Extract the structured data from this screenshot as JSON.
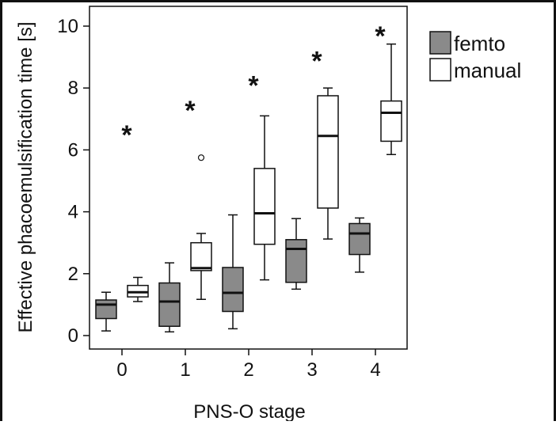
{
  "chart_data": {
    "type": "boxplot",
    "xlabel": "PNS-O stage",
    "ylabel": "Effective phacoemulsification time [s]",
    "categories": [
      "0",
      "1",
      "2",
      "3",
      "4"
    ],
    "ylim": [
      -0.3,
      10.5
    ],
    "yticks": [
      "0",
      "2",
      "4",
      "6",
      "8",
      "10"
    ],
    "legend": {
      "placement": "right",
      "entries": [
        "femto",
        "manual"
      ]
    },
    "series": [
      {
        "name": "femto",
        "color": "#8a8a8a",
        "boxes": [
          {
            "min": 0.15,
            "q1": 0.55,
            "median": 1.0,
            "q3": 1.15,
            "max": 1.4,
            "outliers": []
          },
          {
            "min": 0.12,
            "q1": 0.3,
            "median": 1.1,
            "q3": 1.7,
            "max": 2.35,
            "outliers": []
          },
          {
            "min": 0.22,
            "q1": 0.78,
            "median": 1.38,
            "q3": 2.2,
            "max": 3.9,
            "outliers": []
          },
          {
            "min": 1.5,
            "q1": 1.72,
            "median": 2.8,
            "q3": 3.1,
            "max": 3.78,
            "outliers": []
          },
          {
            "min": 2.05,
            "q1": 2.62,
            "median": 3.3,
            "q3": 3.62,
            "max": 3.8,
            "outliers": []
          }
        ]
      },
      {
        "name": "manual",
        "color": "#ffffff",
        "boxes": [
          {
            "min": 1.1,
            "q1": 1.25,
            "median": 1.4,
            "q3": 1.62,
            "max": 1.88,
            "outliers": []
          },
          {
            "min": 1.17,
            "q1": 2.1,
            "median": 2.18,
            "q3": 3.0,
            "max": 3.3,
            "outliers": [
              5.75
            ]
          },
          {
            "min": 1.8,
            "q1": 2.95,
            "median": 3.95,
            "q3": 5.4,
            "max": 7.1,
            "outliers": []
          },
          {
            "min": 3.12,
            "q1": 4.12,
            "median": 6.45,
            "q3": 7.75,
            "max": 8.0,
            "outliers": []
          },
          {
            "min": 5.85,
            "q1": 6.28,
            "median": 7.2,
            "q3": 7.58,
            "max": 9.42,
            "outliers": []
          }
        ]
      }
    ],
    "annotations": [
      {
        "text": "*",
        "x": "0",
        "y": 6.8
      },
      {
        "text": "*",
        "x": "1",
        "y": 7.6
      },
      {
        "text": "*",
        "x": "2",
        "y": 8.4
      },
      {
        "text": "*",
        "x": "3",
        "y": 9.2
      },
      {
        "text": "*",
        "x": "4",
        "y": 10.0
      }
    ],
    "grid": false
  }
}
